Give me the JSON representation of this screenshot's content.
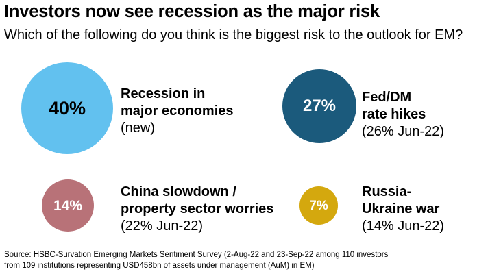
{
  "title": "Investors now see recession as the major risk",
  "subtitle": "Which of the following do you think is the biggest risk to the outlook for EM?",
  "chart_data": {
    "type": "bubble",
    "unit": "%",
    "items": [
      {
        "value": 40,
        "value_label": "40%",
        "label_lines": [
          "Recession in",
          "major economies"
        ],
        "note": "(new)",
        "color": "#62c1ef",
        "text_color": "#000000"
      },
      {
        "value": 27,
        "value_label": "27%",
        "label_lines": [
          "Fed/DM",
          "rate hikes"
        ],
        "note": "(26% Jun-22)",
        "color": "#1b5a7c",
        "text_color": "#ffffff"
      },
      {
        "value": 14,
        "value_label": "14%",
        "label_lines": [
          "China slowdown /",
          "property sector worries"
        ],
        "note": "(22% Jun-22)",
        "color": "#b87278",
        "text_color": "#ffffff"
      },
      {
        "value": 7,
        "value_label": "7%",
        "label_lines": [
          "Russia-",
          "Ukraine war"
        ],
        "note": "(14% Jun-22)",
        "color": "#d4a80e",
        "text_color": "#ffffff"
      }
    ]
  },
  "source_lines": [
    "Source: HSBC-Survation Emerging Markets Sentiment Survey (2-Aug-22 and 23-Sep-22 among 110 investors",
    "from 109 institutions representing USD458bn of assets under management (AuM) in EM)"
  ]
}
